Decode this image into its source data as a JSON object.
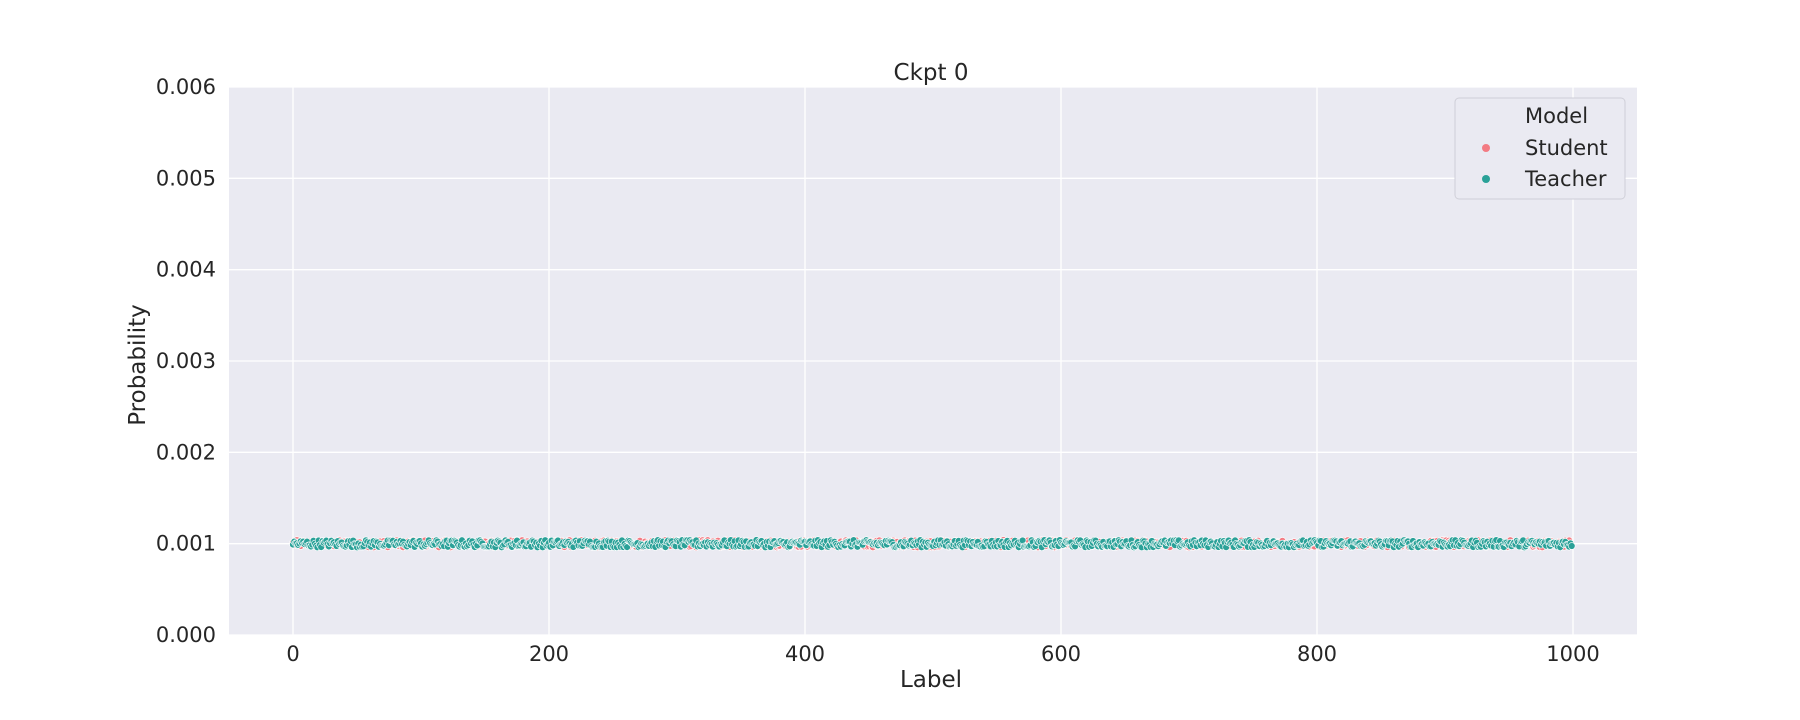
{
  "chart_data": {
    "type": "scatter",
    "title": "Ckpt 0",
    "xlabel": "Label",
    "ylabel": "Probability",
    "xlim": [
      -50,
      1050
    ],
    "ylim": [
      0.0,
      0.006
    ],
    "xticks": [
      0,
      200,
      400,
      600,
      800,
      1000
    ],
    "xtick_labels": [
      "0",
      "200",
      "400",
      "600",
      "800",
      "1000"
    ],
    "yticks": [
      0.0,
      0.001,
      0.002,
      0.003,
      0.004,
      0.005,
      0.006
    ],
    "ytick_labels": [
      "0.000",
      "0.001",
      "0.002",
      "0.003",
      "0.004",
      "0.005",
      "0.006"
    ],
    "grid": true,
    "legend": {
      "title": "Model",
      "placement": "top-right"
    },
    "series": [
      {
        "name": "Student",
        "color": "#f37b83",
        "x_range": [
          0,
          999
        ],
        "x_step": 1,
        "y_center": 0.001,
        "y_jitter": 4e-05
      },
      {
        "name": "Teacher",
        "color": "#2aa198",
        "x_range": [
          0,
          999
        ],
        "x_step": 1,
        "y_center": 0.001,
        "y_jitter": 4e-05
      }
    ]
  }
}
